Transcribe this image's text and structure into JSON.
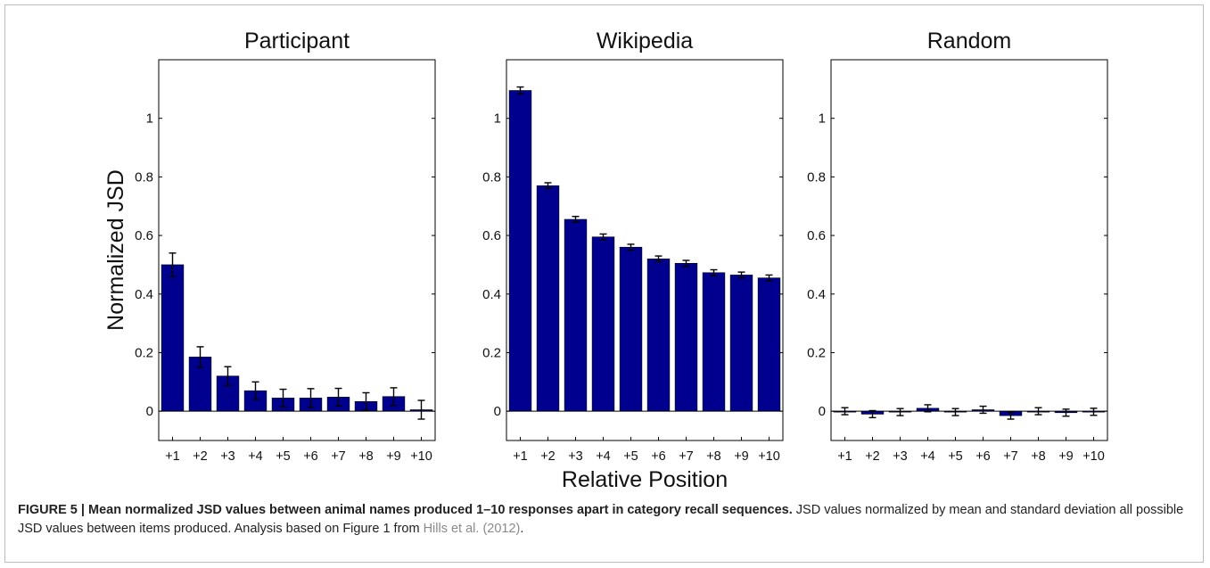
{
  "figure": {
    "caption_label": "FIGURE 5 | Mean normalized JSD values between animal names produced 1–10 responses apart in category recall sequences.",
    "caption_text": " JSD values normalized by mean and standard deviation all possible JSD values between items produced. Analysis based on Figure 1 from ",
    "caption_citation": "Hills et al. (2012)",
    "caption_end": "."
  },
  "colors": {
    "bar": "#00008f",
    "axis": "#000000",
    "text": "#111111"
  },
  "chart_data": [
    {
      "type": "bar",
      "title": "Participant",
      "ylabel": "Normalized JSD",
      "xlabel": "",
      "categories": [
        "+1",
        "+2",
        "+3",
        "+4",
        "+5",
        "+6",
        "+7",
        "+8",
        "+9",
        "+10"
      ],
      "values": [
        0.5,
        0.185,
        0.12,
        0.07,
        0.045,
        0.045,
        0.048,
        0.033,
        0.05,
        0.005
      ],
      "errors": [
        0.04,
        0.035,
        0.032,
        0.03,
        0.03,
        0.032,
        0.03,
        0.03,
        0.03,
        0.032
      ],
      "ylim": [
        -0.1,
        1.2
      ],
      "yticks": [
        0,
        0.2,
        0.4,
        0.6,
        0.8,
        1
      ],
      "ytick_labels": [
        "0",
        "0.2",
        "0.4",
        "0.6",
        "0.8",
        "1"
      ]
    },
    {
      "type": "bar",
      "title": "Wikipedia",
      "ylabel": "",
      "xlabel": "Relative Position",
      "categories": [
        "+1",
        "+2",
        "+3",
        "+4",
        "+5",
        "+6",
        "+7",
        "+8",
        "+9",
        "+10"
      ],
      "values": [
        1.095,
        0.77,
        0.655,
        0.595,
        0.56,
        0.52,
        0.505,
        0.473,
        0.465,
        0.455
      ],
      "errors": [
        0.012,
        0.01,
        0.01,
        0.01,
        0.01,
        0.01,
        0.01,
        0.01,
        0.01,
        0.01
      ],
      "ylim": [
        -0.1,
        1.2
      ],
      "yticks": [
        0,
        0.2,
        0.4,
        0.6,
        0.8,
        1
      ],
      "ytick_labels": [
        "0",
        "0.2",
        "0.4",
        "0.6",
        "0.8",
        "1"
      ]
    },
    {
      "type": "bar",
      "title": "Random",
      "ylabel": "",
      "xlabel": "",
      "categories": [
        "+1",
        "+2",
        "+3",
        "+4",
        "+5",
        "+6",
        "+7",
        "+8",
        "+9",
        "+10"
      ],
      "values": [
        0.0,
        -0.01,
        -0.003,
        0.01,
        -0.003,
        0.005,
        -0.015,
        0.0,
        -0.005,
        -0.002
      ],
      "errors": [
        0.012,
        0.012,
        0.012,
        0.012,
        0.012,
        0.012,
        0.012,
        0.012,
        0.012,
        0.012
      ],
      "ylim": [
        -0.1,
        1.2
      ],
      "yticks": [
        0,
        0.2,
        0.4,
        0.6,
        0.8,
        1
      ],
      "ytick_labels": [
        "0",
        "0.2",
        "0.4",
        "0.6",
        "0.8",
        "1"
      ]
    }
  ]
}
